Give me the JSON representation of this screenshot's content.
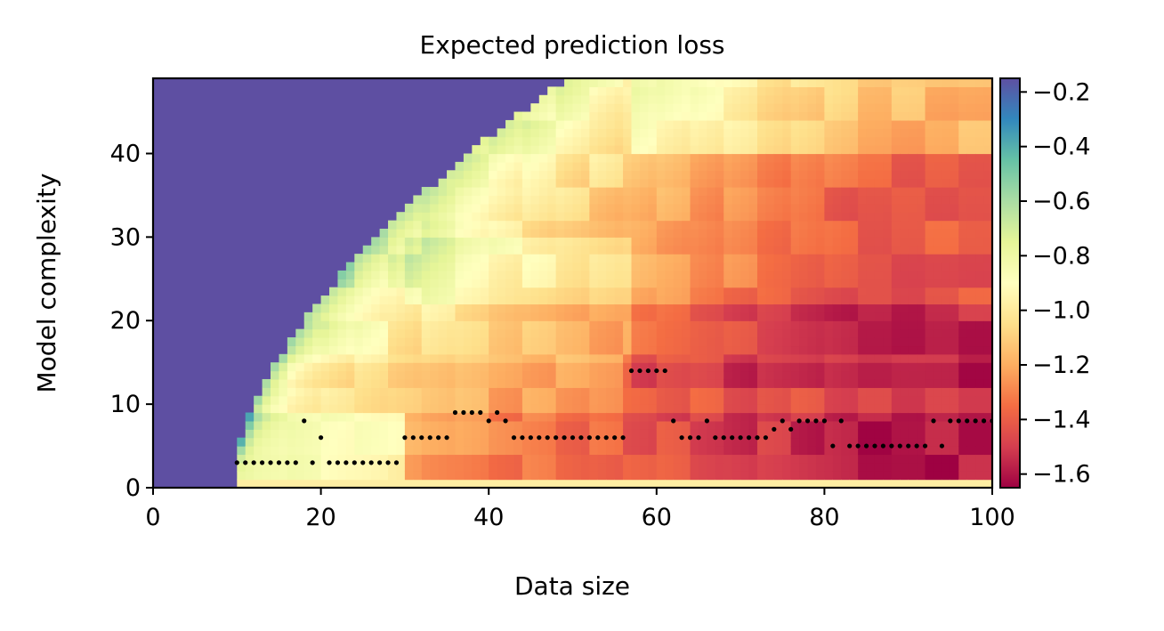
{
  "chart_data": {
    "type": "heatmap",
    "title": "Expected prediction loss",
    "xlabel": "Data size",
    "ylabel": "Model complexity",
    "xlim": [
      0,
      100
    ],
    "ylim": [
      0,
      49
    ],
    "x_ticks": [
      "0",
      "20",
      "40",
      "60",
      "80",
      "100"
    ],
    "y_ticks": [
      "0",
      "10",
      "20",
      "30",
      "40"
    ],
    "colorbar": {
      "colormap": "Spectral",
      "vmin": -1.65,
      "vmax": -0.15,
      "ticks": [
        "−0.2",
        "−0.4",
        "−0.6",
        "−0.8",
        "−1.0",
        "−1.2",
        "−1.4",
        "−1.6"
      ],
      "tick_values": [
        -0.2,
        -0.4,
        -0.6,
        -0.8,
        -1.0,
        -1.2,
        -1.4,
        -1.6
      ]
    },
    "masked_color": "#5e4fa2",
    "masked_region": "model complexity above the feasible limit for each data size (upper-left region, and all data sizes below 10)",
    "optimal_complexity": {
      "x": [
        10,
        11,
        12,
        13,
        14,
        15,
        16,
        17,
        18,
        19,
        20,
        21,
        22,
        23,
        24,
        25,
        26,
        27,
        28,
        29,
        30,
        31,
        32,
        33,
        34,
        35,
        36,
        37,
        38,
        39,
        40,
        41,
        42,
        43,
        44,
        45,
        46,
        47,
        48,
        49,
        50,
        51,
        52,
        53,
        54,
        55,
        56,
        57,
        58,
        59,
        60,
        61,
        62,
        63,
        64,
        65,
        66,
        67,
        68,
        69,
        70,
        71,
        72,
        73,
        74,
        75,
        76,
        77,
        78,
        79,
        80,
        81,
        82,
        83,
        84,
        85,
        86,
        87,
        88,
        89,
        90,
        91,
        92,
        93,
        94,
        95,
        96,
        97,
        98,
        99,
        100
      ],
      "y": [
        3,
        3,
        3,
        3,
        3,
        3,
        3,
        3,
        8,
        3,
        6,
        3,
        3,
        3,
        3,
        3,
        3,
        3,
        3,
        3,
        6,
        6,
        6,
        6,
        6,
        6,
        9,
        9,
        9,
        9,
        8,
        9,
        8,
        6,
        6,
        6,
        6,
        6,
        6,
        6,
        6,
        6,
        6,
        6,
        6,
        6,
        6,
        14,
        14,
        14,
        14,
        14,
        8,
        6,
        6,
        6,
        8,
        6,
        6,
        6,
        6,
        6,
        6,
        6,
        7,
        8,
        7,
        8,
        8,
        8,
        8,
        5,
        8,
        5,
        5,
        5,
        5,
        5,
        5,
        5,
        5,
        5,
        5,
        8,
        5,
        8,
        8,
        8,
        8,
        8,
        8
      ]
    }
  }
}
